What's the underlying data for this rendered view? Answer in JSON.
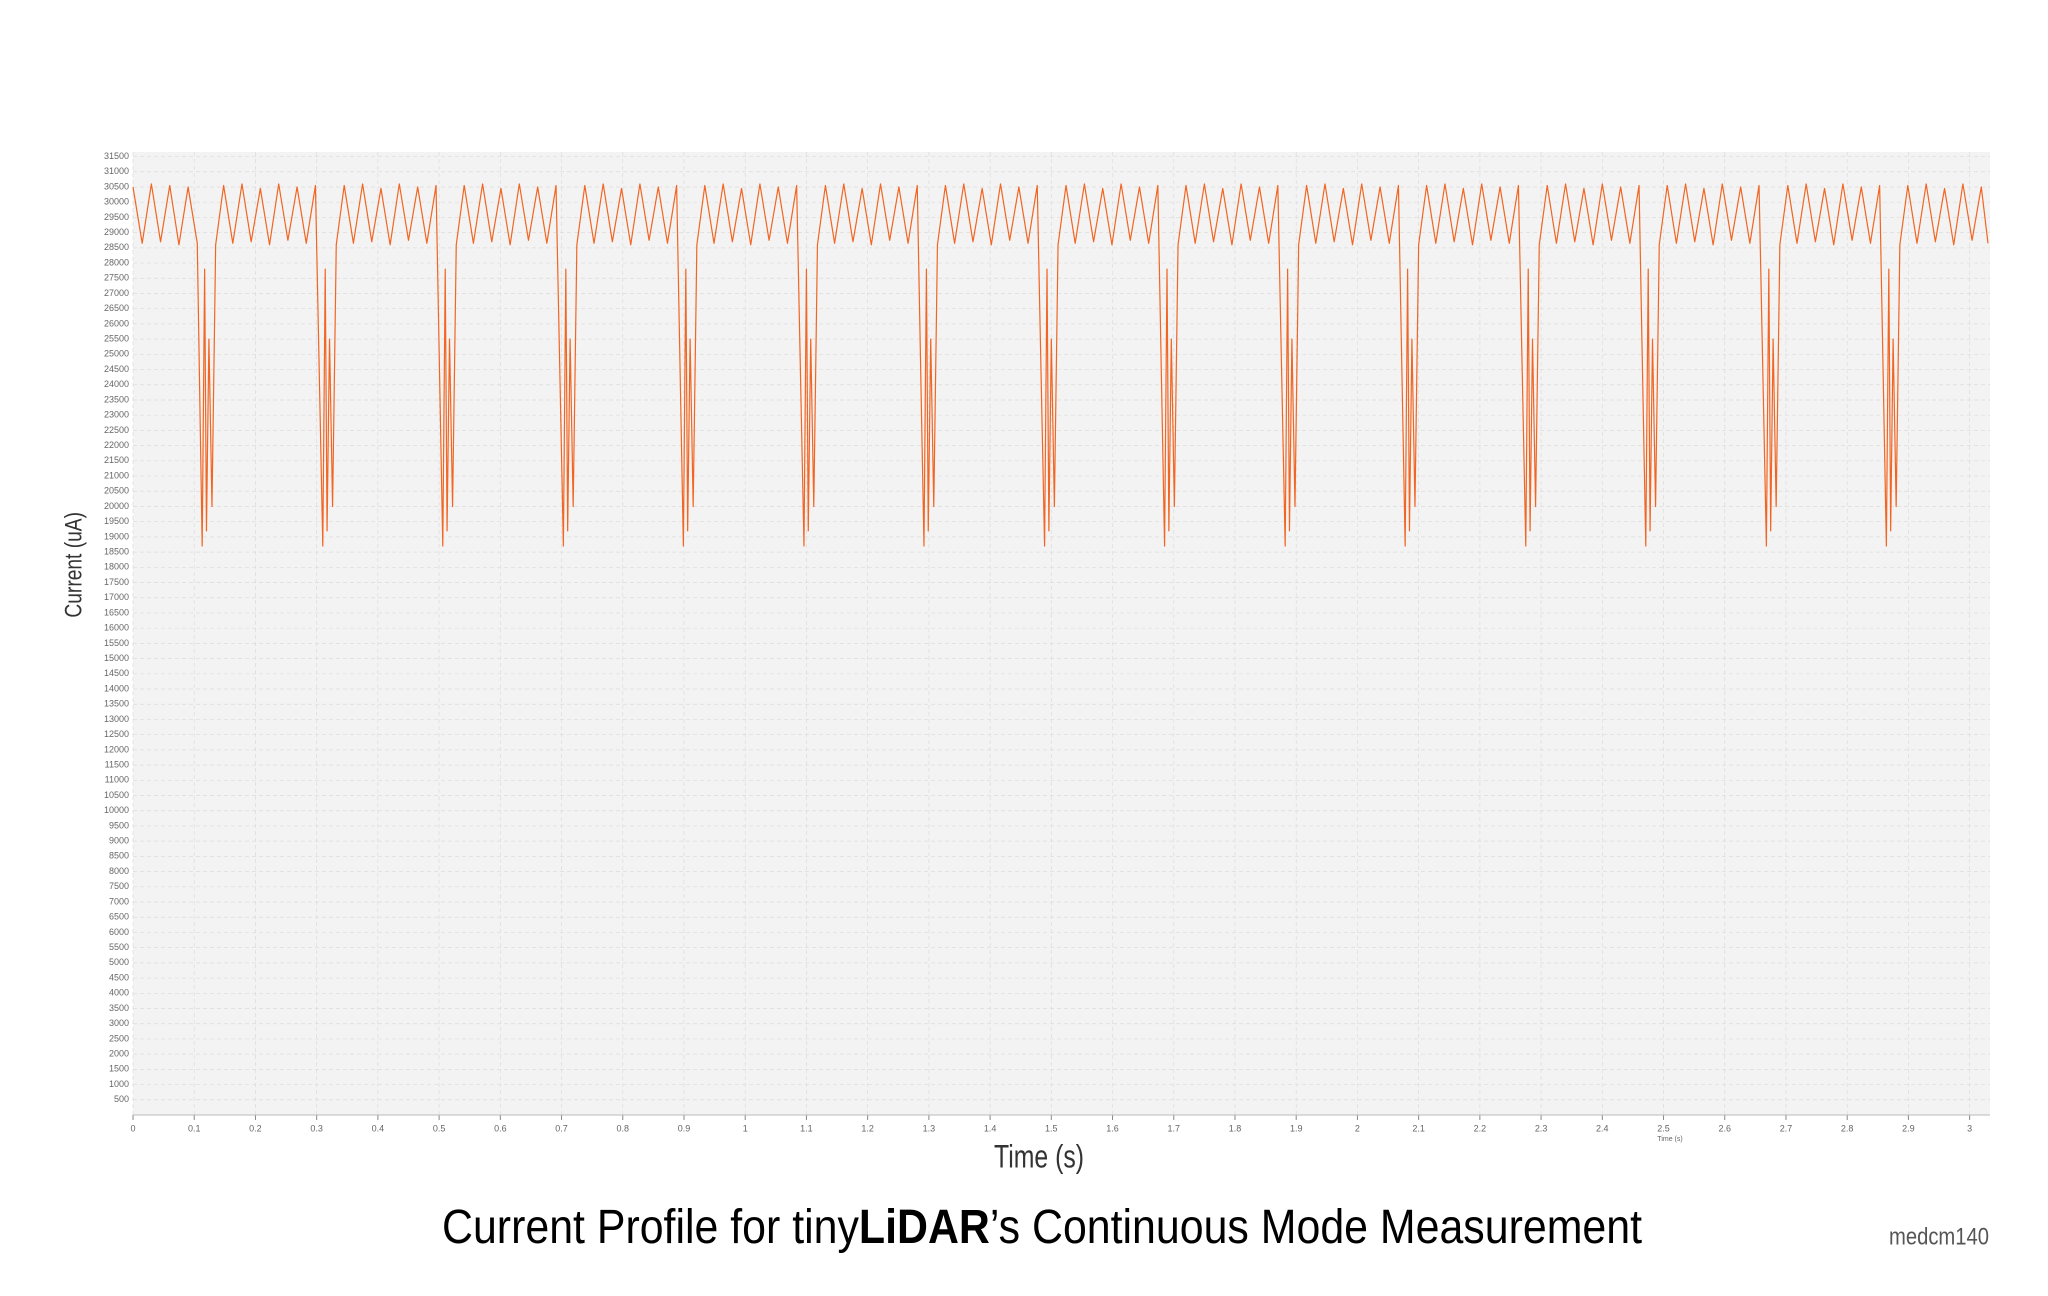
{
  "chart_data": {
    "type": "line",
    "title": [
      "Current Profile for tiny",
      "LiDAR",
      "’s Continuous Mode Measurement"
    ],
    "watermark": "medcm140",
    "x_label": "Time (s)",
    "x_unit_note": "Time (s)",
    "y_label": "Current (uA)",
    "xlim": [
      0,
      3.03
    ],
    "ylim": [
      0,
      31650
    ],
    "xticks": [
      0,
      0.1,
      0.2,
      0.3,
      0.4,
      0.5,
      0.6,
      0.7,
      0.8,
      0.9,
      1,
      1.1,
      1.2,
      1.3,
      1.4,
      1.5,
      1.6,
      1.7,
      1.8,
      1.9,
      2,
      2.1,
      2.2,
      2.3,
      2.4,
      2.5,
      2.6,
      2.7,
      2.8,
      2.9,
      3
    ],
    "yticks": [
      500,
      1000,
      1500,
      2000,
      2500,
      3000,
      3500,
      4000,
      4500,
      5000,
      5500,
      6000,
      6500,
      7000,
      7500,
      8000,
      8500,
      9000,
      9500,
      10000,
      10500,
      11000,
      11500,
      12000,
      12500,
      13000,
      13500,
      14000,
      14500,
      15000,
      15500,
      16000,
      16500,
      17000,
      17500,
      18000,
      18500,
      19000,
      19500,
      20000,
      20500,
      21000,
      21500,
      22000,
      22500,
      23000,
      23500,
      24000,
      24500,
      25000,
      25500,
      26000,
      26500,
      27000,
      27500,
      28000,
      28500,
      29000,
      29500,
      30000,
      30500,
      31000,
      31500
    ],
    "grid": true,
    "x": [
      0,
      0.015,
      0.03,
      0.045,
      0.06,
      0.075,
      0.09,
      0.105,
      0.113,
      0.117,
      0.12,
      0.124,
      0.129,
      0.135,
      0.148,
      0.163,
      0.178,
      0.193,
      0.208,
      0.223,
      0.238,
      0.253,
      0.268,
      0.283,
      0.298,
      0.31,
      0.314,
      0.317,
      0.321,
      0.326,
      0.332,
      0.345,
      0.36,
      0.375,
      0.39,
      0.405,
      0.42,
      0.435,
      0.45,
      0.465,
      0.48,
      0.495,
      0.506,
      0.51,
      0.513,
      0.517,
      0.522,
      0.528,
      0.541,
      0.556,
      0.571,
      0.586,
      0.601,
      0.616,
      0.631,
      0.646,
      0.661,
      0.676,
      0.691,
      0.703,
      0.707,
      0.71,
      0.714,
      0.719,
      0.725,
      0.738,
      0.753,
      0.768,
      0.783,
      0.798,
      0.813,
      0.828,
      0.843,
      0.858,
      0.873,
      0.888,
      0.899,
      0.903,
      0.906,
      0.91,
      0.915,
      0.921,
      0.934,
      0.949,
      0.964,
      0.979,
      0.994,
      1.009,
      1.024,
      1.039,
      1.054,
      1.069,
      1.084,
      1.096,
      1.1,
      1.103,
      1.107,
      1.112,
      1.118,
      1.131,
      1.146,
      1.161,
      1.176,
      1.191,
      1.206,
      1.221,
      1.236,
      1.251,
      1.266,
      1.281,
      1.292,
      1.296,
      1.299,
      1.303,
      1.308,
      1.314,
      1.327,
      1.342,
      1.357,
      1.372,
      1.387,
      1.402,
      1.417,
      1.432,
      1.447,
      1.462,
      1.477,
      1.489,
      1.493,
      1.496,
      1.5,
      1.505,
      1.511,
      1.524,
      1.539,
      1.554,
      1.569,
      1.584,
      1.599,
      1.614,
      1.629,
      1.644,
      1.659,
      1.674,
      1.685,
      1.689,
      1.692,
      1.696,
      1.701,
      1.707,
      1.72,
      1.735,
      1.75,
      1.765,
      1.78,
      1.795,
      1.81,
      1.825,
      1.84,
      1.855,
      1.87,
      1.882,
      1.886,
      1.889,
      1.893,
      1.898,
      1.904,
      1.917,
      1.932,
      1.947,
      1.962,
      1.977,
      1.992,
      2.007,
      2.022,
      2.037,
      2.052,
      2.067,
      2.078,
      2.082,
      2.085,
      2.089,
      2.094,
      2.1,
      2.113,
      2.128,
      2.143,
      2.158,
      2.173,
      2.188,
      2.203,
      2.218,
      2.233,
      2.248,
      2.263,
      2.275,
      2.279,
      2.282,
      2.286,
      2.291,
      2.297,
      2.31,
      2.325,
      2.34,
      2.355,
      2.37,
      2.385,
      2.4,
      2.415,
      2.43,
      2.445,
      2.46,
      2.471,
      2.475,
      2.478,
      2.482,
      2.487,
      2.493,
      2.506,
      2.521,
      2.536,
      2.551,
      2.566,
      2.581,
      2.596,
      2.611,
      2.626,
      2.641,
      2.656,
      2.668,
      2.672,
      2.675,
      2.679,
      2.684,
      2.69,
      2.703,
      2.718,
      2.733,
      2.748,
      2.763,
      2.778,
      2.793,
      2.808,
      2.823,
      2.838,
      2.853,
      2.864,
      2.868,
      2.871,
      2.875,
      2.88,
      2.886,
      2.899,
      2.914,
      2.929,
      2.944,
      2.959,
      2.974,
      2.989,
      3.004,
      3.019,
      3.03
    ],
    "series": [
      {
        "color": "#f26522",
        "values": [
          30500,
          28650,
          30600,
          28700,
          30550,
          28600,
          30500,
          28650,
          18700,
          27800,
          19200,
          25500,
          20000,
          28600,
          30550,
          28650,
          30600,
          28700,
          30450,
          28600,
          30600,
          28750,
          30500,
          28650,
          30550,
          18700,
          27800,
          19200,
          25500,
          20000,
          28600,
          30550,
          28650,
          30600,
          28700,
          30450,
          28600,
          30600,
          28750,
          30500,
          28650,
          30550,
          18700,
          27800,
          19200,
          25500,
          20000,
          28600,
          30550,
          28650,
          30600,
          28700,
          30450,
          28600,
          30600,
          28750,
          30500,
          28650,
          30550,
          18700,
          27800,
          19200,
          25500,
          20000,
          28600,
          30550,
          28650,
          30600,
          28700,
          30450,
          28600,
          30600,
          28750,
          30500,
          28650,
          30550,
          18700,
          27800,
          19200,
          25500,
          20000,
          28600,
          30550,
          28650,
          30600,
          28700,
          30450,
          28600,
          30600,
          28750,
          30500,
          28650,
          30550,
          18700,
          27800,
          19200,
          25500,
          20000,
          28600,
          30550,
          28650,
          30600,
          28700,
          30450,
          28600,
          30600,
          28750,
          30500,
          28650,
          30550,
          18700,
          27800,
          19200,
          25500,
          20000,
          28600,
          30550,
          28650,
          30600,
          28700,
          30450,
          28600,
          30600,
          28750,
          30500,
          28650,
          30550,
          18700,
          27800,
          19200,
          25500,
          20000,
          28600,
          30550,
          28650,
          30600,
          28700,
          30450,
          28600,
          30600,
          28750,
          30500,
          28650,
          30550,
          18700,
          27800,
          19200,
          25500,
          20000,
          28600,
          30550,
          28650,
          30600,
          28700,
          30450,
          28600,
          30600,
          28750,
          30500,
          28650,
          30550,
          18700,
          27800,
          19200,
          25500,
          20000,
          28600,
          30550,
          28650,
          30600,
          28700,
          30450,
          28600,
          30600,
          28750,
          30500,
          28650,
          30550,
          18700,
          27800,
          19200,
          25500,
          20000,
          28600,
          30550,
          28650,
          30600,
          28700,
          30450,
          28600,
          30600,
          28750,
          30500,
          28650,
          30550,
          18700,
          27800,
          19200,
          25500,
          20000,
          28600,
          30550,
          28650,
          30600,
          28700,
          30450,
          28600,
          30600,
          28750,
          30500,
          28650,
          30550,
          18700,
          27800,
          19200,
          25500,
          20000,
          28600,
          30550,
          28650,
          30600,
          28700,
          30450,
          28600,
          30600,
          28750,
          30500,
          28650,
          30550,
          18700,
          27800,
          19200,
          25500,
          20000,
          28600,
          30550,
          28650,
          30600,
          28700,
          30450,
          28600,
          30600,
          28750,
          30500,
          28650,
          30550,
          18700,
          27800,
          19200,
          25500,
          20000,
          28600,
          30550,
          28650,
          30600,
          28700,
          30450,
          28600,
          30600,
          28750,
          30500,
          28650
        ]
      }
    ]
  }
}
